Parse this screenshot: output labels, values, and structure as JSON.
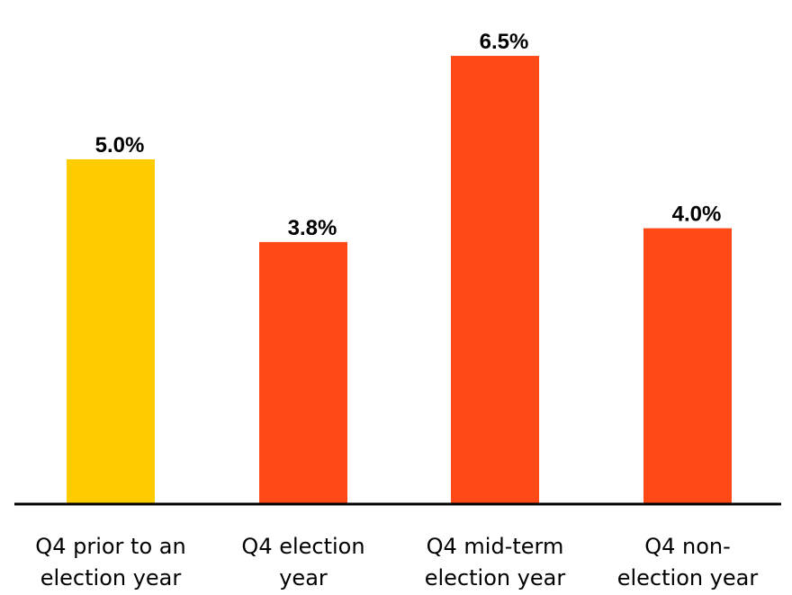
{
  "chart_data": {
    "type": "bar",
    "categories": [
      [
        "Q4 prior to an",
        "election year"
      ],
      [
        "Q4 election",
        "year"
      ],
      [
        "Q4 mid-term",
        "election year"
      ],
      [
        "Q4 non-",
        "election year"
      ]
    ],
    "values": [
      5.0,
      3.8,
      6.5,
      4.0
    ],
    "value_labels": [
      "5.0%",
      "3.8%",
      "6.5%",
      "4.0%"
    ],
    "colors": [
      "#FFCC00",
      "#FF4A17",
      "#FF4A17",
      "#FF4A17"
    ],
    "title": "",
    "xlabel": "",
    "ylabel": "",
    "ylim": [
      0,
      7.31
    ],
    "grid": false,
    "legend": "none"
  }
}
